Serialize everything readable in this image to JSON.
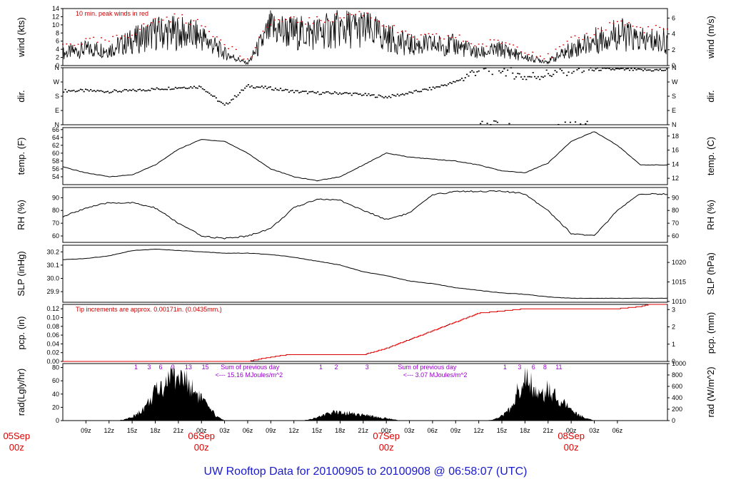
{
  "page_title": "UW Rooftop Data for 20100905  to  20100908 @ 06:58:07  (UTC)",
  "colors": {
    "ink": "#000000",
    "peak": "#dd0000",
    "pcp": "#dd0000",
    "annot_red": "#cc0000",
    "annot_purple": "#9900cc",
    "title": "#1a1acc",
    "day": "#dd0000"
  },
  "time_axis": {
    "hour_ticks": [
      "09z",
      "12z",
      "15z",
      "18z",
      "21z",
      "00z",
      "03z",
      "06z",
      "09z",
      "12z",
      "15z",
      "18z",
      "21z",
      "00z",
      "03z",
      "06z",
      "09z",
      "12z",
      "15z",
      "18z",
      "21z",
      "00z",
      "03z",
      "06z"
    ],
    "day_labels": [
      {
        "date": "05Sep",
        "hour": "00z"
      },
      {
        "date": "06Sep",
        "hour": "00z"
      },
      {
        "date": "07Sep",
        "hour": "00z"
      },
      {
        "date": "08Sep",
        "hour": "00z"
      }
    ]
  },
  "annotations": {
    "peak_note": "10 min. peak winds in red",
    "tip_note": "Tip increments are approx. 0.00171in. (0.0435mm.)",
    "rad_day1": "Sum of previous day",
    "rad_day1_value": "<--- 15.16 MJoules/m^2",
    "rad_day2": "Sum of previous day",
    "rad_day2_value": "<--- 3.07 MJoules/m^2",
    "rad_markers": [
      "1",
      "3",
      "6",
      "9",
      "13",
      "15",
      "1",
      "2",
      "3",
      "1",
      "3",
      "6",
      "8",
      "11"
    ]
  },
  "chart_data": [
    {
      "type": "line",
      "name": "wind",
      "ylabel": "wind (kts)",
      "y2label": "wind (m/s)",
      "ylim": [
        0,
        14
      ],
      "yticks": [
        "0",
        "2",
        "4",
        "6",
        "8",
        "10",
        "12",
        "14"
      ],
      "y2lim": [
        0,
        7.2
      ],
      "y2ticks": [
        "0",
        "2",
        "4",
        "6"
      ],
      "x_hours": [
        6,
        9,
        12,
        15,
        18,
        21,
        24,
        27,
        30,
        33,
        36,
        39,
        42,
        45,
        48,
        51,
        54,
        57,
        60,
        63,
        66,
        69,
        72,
        75,
        78,
        81
      ],
      "values": [
        3,
        4,
        4,
        6,
        8,
        8,
        7,
        3,
        0.5,
        9,
        8,
        8,
        9,
        9,
        7,
        5,
        5,
        5,
        3,
        4,
        2,
        1,
        4,
        6,
        8,
        6
      ],
      "peaks": [
        5,
        6,
        6,
        8,
        11,
        12,
        10,
        6,
        1,
        11,
        11,
        11,
        12,
        13,
        10,
        7,
        7,
        7,
        5,
        6,
        4,
        2,
        6,
        8,
        11,
        9
      ]
    },
    {
      "type": "scatter",
      "name": "dir.",
      "ylabel": "dir.",
      "y2label": "dir.",
      "yticks": [
        "N",
        "E",
        "S",
        "W",
        "N"
      ],
      "y2ticks": [
        "N",
        "E",
        "S",
        "W",
        "N"
      ],
      "ylim": [
        0,
        360
      ],
      "x_hours": [
        6,
        9,
        12,
        15,
        18,
        21,
        24,
        27,
        30,
        33,
        36,
        39,
        42,
        45,
        48,
        51,
        54,
        57,
        60,
        63,
        66,
        69,
        72,
        75,
        78,
        81
      ],
      "values": [
        215,
        215,
        210,
        215,
        225,
        235,
        240,
        120,
        245,
        230,
        210,
        200,
        200,
        190,
        175,
        200,
        230,
        270,
        350,
        350,
        300,
        320,
        350,
        350,
        350,
        345
      ]
    },
    {
      "type": "line",
      "name": "temp",
      "ylabel": "temp. (F)",
      "y2label": "temp. (C)",
      "ylim": [
        52,
        66.5
      ],
      "yticks": [
        "54",
        "56",
        "58",
        "60",
        "62",
        "64",
        "66"
      ],
      "y2lim": [
        11.1,
        19.2
      ],
      "y2ticks": [
        "12",
        "14",
        "16",
        "18"
      ],
      "x_hours": [
        6,
        9,
        12,
        15,
        18,
        21,
        24,
        27,
        30,
        33,
        36,
        39,
        42,
        45,
        48,
        51,
        54,
        57,
        60,
        63,
        66,
        69,
        72,
        75,
        78,
        81
      ],
      "values": [
        56.5,
        55,
        54,
        54.5,
        57,
        61,
        63.5,
        63,
        60,
        56,
        54,
        53,
        54,
        57,
        60,
        59,
        58.5,
        58,
        57,
        55.5,
        55,
        57.5,
        63,
        65.5,
        62,
        57
      ]
    },
    {
      "type": "line",
      "name": "RH",
      "ylabel": "RH (%)",
      "y2label": "RH (%)",
      "ylim": [
        55,
        98
      ],
      "yticks": [
        "60",
        "70",
        "80",
        "90"
      ],
      "y2lim": [
        55,
        98
      ],
      "y2ticks": [
        "60",
        "70",
        "80",
        "90"
      ],
      "x_hours": [
        6,
        9,
        12,
        15,
        18,
        21,
        24,
        27,
        30,
        33,
        36,
        39,
        42,
        45,
        48,
        51,
        54,
        57,
        60,
        63,
        66,
        69,
        72,
        75,
        78,
        81
      ],
      "values": [
        75,
        82,
        86,
        86,
        82,
        70,
        60,
        58,
        60,
        66,
        82,
        89,
        88,
        80,
        73,
        78,
        92,
        95,
        95,
        95,
        93,
        80,
        62,
        60,
        80,
        93
      ]
    },
    {
      "type": "line",
      "name": "SLP",
      "ylabel": "SLP (inHg)",
      "y2label": "SLP (hPa)",
      "ylim": [
        29.82,
        30.25
      ],
      "yticks": [
        "29.9",
        "30.0",
        "30.1",
        "30.2"
      ],
      "y2lim": [
        1009.8,
        1024.4
      ],
      "y2ticks": [
        "1010",
        "1015",
        "1020"
      ],
      "x_hours": [
        6,
        9,
        12,
        15,
        18,
        21,
        24,
        27,
        30,
        33,
        36,
        39,
        42,
        45,
        48,
        51,
        54,
        57,
        60,
        63,
        66,
        69,
        72,
        75,
        78,
        81
      ],
      "values": [
        30.14,
        30.15,
        30.17,
        30.21,
        30.22,
        30.21,
        30.2,
        30.19,
        30.19,
        30.18,
        30.16,
        30.13,
        30.1,
        30.05,
        30.02,
        29.98,
        29.96,
        29.93,
        29.91,
        29.89,
        29.88,
        29.86,
        29.85,
        29.85,
        29.85,
        29.85
      ]
    },
    {
      "type": "line",
      "name": "pcp",
      "ylabel": "pcp. (in)",
      "y2label": "pcp. (mm)",
      "ylim": [
        0,
        0.13
      ],
      "yticks": [
        "0.00",
        "0.02",
        "0.04",
        "0.06",
        "0.08",
        "0.10",
        "0.12"
      ],
      "y2lim": [
        0,
        3.3
      ],
      "y2ticks": [
        "0",
        "1",
        "2",
        "3"
      ],
      "x_hours": [
        6,
        30,
        33,
        35,
        38,
        42,
        45,
        48,
        51,
        54,
        57,
        60,
        63,
        66,
        69,
        72,
        75,
        78,
        81,
        82
      ],
      "values": [
        0,
        0,
        0.01,
        0.015,
        0.015,
        0.015,
        0.015,
        0.03,
        0.05,
        0.07,
        0.09,
        0.11,
        0.115,
        0.12,
        0.12,
        0.12,
        0.12,
        0.12,
        0.125,
        0.13
      ]
    },
    {
      "type": "area",
      "name": "rad",
      "ylabel": "rad(Lgly/hr)",
      "y2label": "rad (W/m^2)",
      "ylim": [
        0,
        86
      ],
      "yticks": [
        "0",
        "20",
        "40",
        "60",
        "80"
      ],
      "y2lim": [
        0,
        1000
      ],
      "y2ticks": [
        "0",
        "200",
        "400",
        "600",
        "800",
        "1000"
      ],
      "x_hours": [
        6,
        13,
        14,
        15,
        16,
        17,
        18,
        19,
        20,
        21,
        22,
        23,
        24,
        25,
        26,
        27,
        37,
        38,
        39,
        40,
        41,
        42,
        43,
        44,
        45,
        46,
        47,
        48,
        49,
        50,
        51,
        61,
        62,
        63,
        64,
        65,
        66,
        67,
        68,
        69,
        70,
        71,
        72,
        73,
        74,
        75,
        86
      ],
      "values": [
        0,
        0,
        2,
        6,
        15,
        30,
        50,
        62,
        80,
        78,
        70,
        55,
        40,
        20,
        8,
        0,
        0,
        2,
        6,
        10,
        14,
        16,
        14,
        12,
        10,
        8,
        6,
        4,
        2,
        0,
        0,
        0,
        2,
        8,
        20,
        50,
        80,
        60,
        40,
        55,
        45,
        30,
        20,
        10,
        4,
        0,
        0
      ]
    }
  ]
}
